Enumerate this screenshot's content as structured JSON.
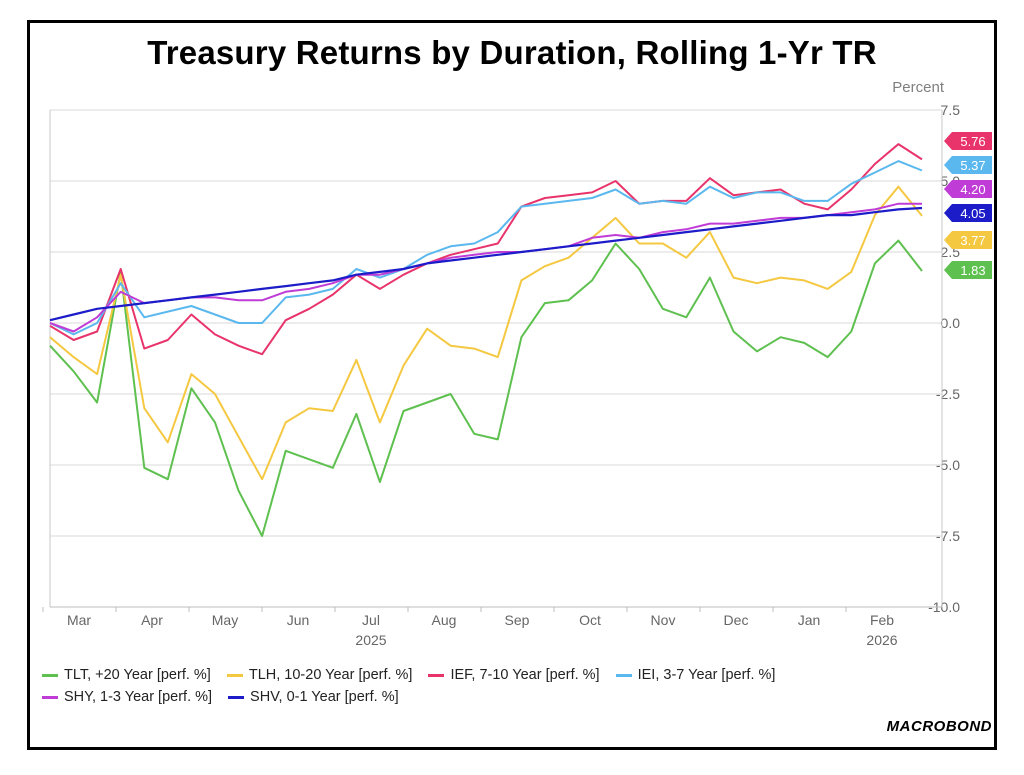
{
  "chart_data": {
    "type": "line",
    "title": "Treasury Returns by Duration, Rolling 1-Yr TR",
    "unit_label": "Percent",
    "ylim": [
      -10.0,
      7.5
    ],
    "y_ticks": [
      "7.5",
      "5.0",
      "2.5",
      "0.0",
      "-2.5",
      "-5.0",
      "-7.5",
      "-10.0"
    ],
    "x_ticks": [
      "Mar",
      "Apr",
      "May",
      "Jun",
      "Jul",
      "Aug",
      "Sep",
      "Oct",
      "Nov",
      "Dec",
      "Jan",
      "Feb"
    ],
    "x_year_labels": [
      {
        "label": "2025",
        "under": "Jul"
      },
      {
        "label": "2026",
        "under": "Feb"
      }
    ],
    "grid": true,
    "legend_position": "bottom",
    "brand": "MACROBOND",
    "x": [
      "Mar-01",
      "Mar-15",
      "Mar-27",
      "Apr-02",
      "Apr-08",
      "Apr-15",
      "Apr-22",
      "May-01",
      "May-08",
      "May-15",
      "May-22",
      "Jun-01",
      "Jun-15",
      "Jul-01",
      "Jul-10",
      "Jul-20",
      "Aug-01",
      "Aug-10",
      "Aug-20",
      "Aug-28",
      "Sep-05",
      "Sep-15",
      "Sep-25",
      "Oct-01",
      "Oct-10",
      "Oct-20",
      "Nov-01",
      "Nov-10",
      "Nov-20",
      "Dec-01",
      "Dec-15",
      "Jan-01",
      "Jan-15",
      "Jan-25",
      "Feb-01",
      "Feb-10",
      "Feb-18",
      "Feb-23"
    ],
    "series": [
      {
        "name": "TLT, +20 Year [perf. %]",
        "color": "#5ec04f",
        "end_label": "1.83",
        "values": [
          -0.8,
          -1.7,
          -2.8,
          1.8,
          -5.1,
          -5.5,
          -2.3,
          -3.5,
          -5.9,
          -7.5,
          -4.5,
          -4.8,
          -5.1,
          -3.2,
          -5.6,
          -3.1,
          -2.8,
          -2.5,
          -3.9,
          -4.1,
          -0.5,
          0.7,
          0.8,
          1.5,
          2.8,
          1.9,
          0.5,
          0.2,
          1.6,
          -0.3,
          -1.0,
          -0.5,
          -0.7,
          -1.2,
          -0.3,
          2.1,
          2.9,
          1.83
        ]
      },
      {
        "name": "TLH, 10-20 Year [perf. %]",
        "color": "#f5c842",
        "end_label": "3.77",
        "values": [
          -0.5,
          -1.2,
          -1.8,
          1.7,
          -3.0,
          -4.2,
          -1.8,
          -2.5,
          -4.0,
          -5.5,
          -3.5,
          -3.0,
          -3.1,
          -1.3,
          -3.5,
          -1.5,
          -0.2,
          -0.8,
          -0.9,
          -1.2,
          1.5,
          2.0,
          2.3,
          3.0,
          3.7,
          2.8,
          2.8,
          2.3,
          3.2,
          1.6,
          1.4,
          1.6,
          1.5,
          1.2,
          1.8,
          3.8,
          4.8,
          3.77
        ]
      },
      {
        "name": "IEF, 7-10 Year [perf. %]",
        "color": "#e8336b",
        "end_label": "5.76",
        "values": [
          -0.1,
          -0.6,
          -0.3,
          1.9,
          -0.9,
          -0.6,
          0.3,
          -0.4,
          -0.8,
          -1.1,
          0.1,
          0.5,
          1.0,
          1.7,
          1.2,
          1.7,
          2.1,
          2.4,
          2.6,
          2.8,
          4.1,
          4.4,
          4.5,
          4.6,
          5.0,
          4.2,
          4.3,
          4.3,
          5.1,
          4.5,
          4.6,
          4.7,
          4.2,
          4.0,
          4.7,
          5.6,
          6.3,
          5.76
        ]
      },
      {
        "name": "IEI, 3-7 Year [perf. %]",
        "color": "#5bb8ee",
        "end_label": "5.37",
        "values": [
          0.0,
          -0.4,
          0.0,
          1.4,
          0.2,
          0.4,
          0.6,
          0.3,
          0.0,
          0.0,
          0.9,
          1.0,
          1.2,
          1.9,
          1.6,
          1.9,
          2.4,
          2.7,
          2.8,
          3.2,
          4.1,
          4.2,
          4.3,
          4.4,
          4.7,
          4.2,
          4.3,
          4.2,
          4.8,
          4.4,
          4.6,
          4.6,
          4.3,
          4.3,
          4.9,
          5.3,
          5.7,
          5.37
        ]
      },
      {
        "name": "SHY, 1-3 Year [perf. %]",
        "color": "#c03cd6",
        "end_label": "4.20",
        "values": [
          0.0,
          -0.3,
          0.2,
          1.1,
          0.7,
          0.8,
          0.9,
          0.9,
          0.8,
          0.8,
          1.1,
          1.2,
          1.4,
          1.7,
          1.7,
          1.9,
          2.1,
          2.3,
          2.4,
          2.5,
          2.5,
          2.6,
          2.7,
          3.0,
          3.1,
          3.0,
          3.2,
          3.3,
          3.5,
          3.5,
          3.6,
          3.7,
          3.7,
          3.8,
          3.9,
          4.0,
          4.2,
          4.2
        ]
      },
      {
        "name": "SHV, 0-1 Year [perf. %]",
        "color": "#1c1cc8",
        "end_label": "4.05",
        "values": [
          0.1,
          0.3,
          0.5,
          0.6,
          0.7,
          0.8,
          0.9,
          1.0,
          1.1,
          1.2,
          1.3,
          1.4,
          1.5,
          1.7,
          1.8,
          1.9,
          2.1,
          2.2,
          2.3,
          2.4,
          2.5,
          2.6,
          2.7,
          2.8,
          2.9,
          3.0,
          3.1,
          3.2,
          3.3,
          3.4,
          3.5,
          3.6,
          3.7,
          3.8,
          3.8,
          3.9,
          4.0,
          4.05
        ]
      }
    ]
  }
}
